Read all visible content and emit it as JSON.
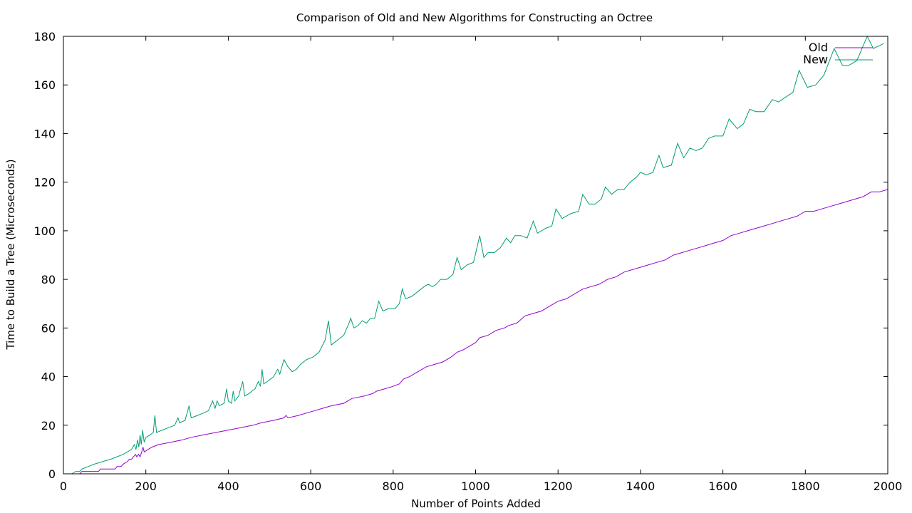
{
  "chart_data": {
    "type": "line",
    "title": "Comparison of Old and New Algorithms for Constructing an Octree",
    "xlabel": "Number of Points Added",
    "ylabel": "Time to Build a Tree (Microseconds)",
    "xlim": [
      0,
      2000
    ],
    "ylim": [
      0,
      180
    ],
    "xticks": [
      0,
      200,
      400,
      600,
      800,
      1000,
      1200,
      1400,
      1600,
      1800,
      2000
    ],
    "yticks": [
      0,
      20,
      40,
      60,
      80,
      100,
      120,
      140,
      160,
      180
    ],
    "grid": false,
    "legend_position": "top-right",
    "series": [
      {
        "name": "Old",
        "color": "#9400d3",
        "points": [
          [
            40,
            0
          ],
          [
            45,
            1
          ],
          [
            85,
            1
          ],
          [
            90,
            2
          ],
          [
            125,
            2
          ],
          [
            130,
            3
          ],
          [
            140,
            3
          ],
          [
            145,
            4
          ],
          [
            155,
            5
          ],
          [
            160,
            6
          ],
          [
            165,
            6
          ],
          [
            170,
            7
          ],
          [
            175,
            8
          ],
          [
            178,
            7
          ],
          [
            182,
            8
          ],
          [
            186,
            7
          ],
          [
            190,
            9
          ],
          [
            193,
            11
          ],
          [
            196,
            9
          ],
          [
            205,
            10
          ],
          [
            215,
            11
          ],
          [
            230,
            12
          ],
          [
            260,
            13
          ],
          [
            290,
            14
          ],
          [
            310,
            15
          ],
          [
            340,
            16
          ],
          [
            370,
            17
          ],
          [
            400,
            18
          ],
          [
            430,
            19
          ],
          [
            460,
            20
          ],
          [
            480,
            21
          ],
          [
            510,
            22
          ],
          [
            535,
            23
          ],
          [
            540,
            24
          ],
          [
            545,
            23
          ],
          [
            570,
            24
          ],
          [
            590,
            25
          ],
          [
            610,
            26
          ],
          [
            630,
            27
          ],
          [
            650,
            28
          ],
          [
            680,
            29
          ],
          [
            700,
            31
          ],
          [
            730,
            32
          ],
          [
            750,
            33
          ],
          [
            760,
            34
          ],
          [
            780,
            35
          ],
          [
            800,
            36
          ],
          [
            815,
            37
          ],
          [
            825,
            39
          ],
          [
            840,
            40
          ],
          [
            860,
            42
          ],
          [
            880,
            44
          ],
          [
            900,
            45
          ],
          [
            920,
            46
          ],
          [
            940,
            48
          ],
          [
            955,
            50
          ],
          [
            970,
            51
          ],
          [
            990,
            53
          ],
          [
            1000,
            54
          ],
          [
            1010,
            56
          ],
          [
            1030,
            57
          ],
          [
            1050,
            59
          ],
          [
            1070,
            60
          ],
          [
            1080,
            61
          ],
          [
            1100,
            62
          ],
          [
            1120,
            65
          ],
          [
            1140,
            66
          ],
          [
            1160,
            67
          ],
          [
            1180,
            69
          ],
          [
            1200,
            71
          ],
          [
            1220,
            72
          ],
          [
            1240,
            74
          ],
          [
            1260,
            76
          ],
          [
            1280,
            77
          ],
          [
            1300,
            78
          ],
          [
            1320,
            80
          ],
          [
            1340,
            81
          ],
          [
            1360,
            83
          ],
          [
            1380,
            84
          ],
          [
            1400,
            85
          ],
          [
            1420,
            86
          ],
          [
            1440,
            87
          ],
          [
            1460,
            88
          ],
          [
            1480,
            90
          ],
          [
            1500,
            91
          ],
          [
            1520,
            92
          ],
          [
            1540,
            93
          ],
          [
            1560,
            94
          ],
          [
            1580,
            95
          ],
          [
            1600,
            96
          ],
          [
            1620,
            98
          ],
          [
            1640,
            99
          ],
          [
            1660,
            100
          ],
          [
            1680,
            101
          ],
          [
            1700,
            102
          ],
          [
            1720,
            103
          ],
          [
            1740,
            104
          ],
          [
            1760,
            105
          ],
          [
            1780,
            106
          ],
          [
            1800,
            108
          ],
          [
            1820,
            108
          ],
          [
            1840,
            109
          ],
          [
            1860,
            110
          ],
          [
            1880,
            111
          ],
          [
            1900,
            112
          ],
          [
            1920,
            113
          ],
          [
            1940,
            114
          ],
          [
            1960,
            116
          ],
          [
            1980,
            116
          ],
          [
            2000,
            117
          ]
        ]
      },
      {
        "name": "New",
        "color": "#009e73",
        "points": [
          [
            20,
            0
          ],
          [
            30,
            1
          ],
          [
            40,
            1
          ],
          [
            45,
            2
          ],
          [
            60,
            3
          ],
          [
            75,
            4
          ],
          [
            95,
            5
          ],
          [
            115,
            6
          ],
          [
            130,
            7
          ],
          [
            145,
            8
          ],
          [
            155,
            9
          ],
          [
            165,
            10
          ],
          [
            172,
            12
          ],
          [
            176,
            10
          ],
          [
            180,
            14
          ],
          [
            183,
            11
          ],
          [
            186,
            16
          ],
          [
            189,
            12
          ],
          [
            192,
            18
          ],
          [
            196,
            13
          ],
          [
            200,
            15
          ],
          [
            210,
            16
          ],
          [
            218,
            17
          ],
          [
            222,
            24
          ],
          [
            226,
            17
          ],
          [
            240,
            18
          ],
          [
            255,
            19
          ],
          [
            270,
            20
          ],
          [
            278,
            23
          ],
          [
            282,
            21
          ],
          [
            295,
            22
          ],
          [
            305,
            28
          ],
          [
            310,
            23
          ],
          [
            325,
            24
          ],
          [
            340,
            25
          ],
          [
            352,
            26
          ],
          [
            362,
            30
          ],
          [
            368,
            27
          ],
          [
            373,
            30
          ],
          [
            378,
            28
          ],
          [
            390,
            29
          ],
          [
            396,
            35
          ],
          [
            400,
            30
          ],
          [
            408,
            29
          ],
          [
            412,
            34
          ],
          [
            416,
            30
          ],
          [
            425,
            32
          ],
          [
            435,
            38
          ],
          [
            440,
            32
          ],
          [
            450,
            33
          ],
          [
            465,
            35
          ],
          [
            473,
            38
          ],
          [
            478,
            36
          ],
          [
            482,
            43
          ],
          [
            486,
            37
          ],
          [
            495,
            38
          ],
          [
            510,
            40
          ],
          [
            520,
            43
          ],
          [
            525,
            41
          ],
          [
            535,
            47
          ],
          [
            545,
            44
          ],
          [
            555,
            42
          ],
          [
            565,
            43
          ],
          [
            575,
            45
          ],
          [
            590,
            47
          ],
          [
            605,
            48
          ],
          [
            620,
            50
          ],
          [
            635,
            55
          ],
          [
            643,
            63
          ],
          [
            650,
            53
          ],
          [
            665,
            55
          ],
          [
            680,
            57
          ],
          [
            693,
            62
          ],
          [
            697,
            64
          ],
          [
            705,
            60
          ],
          [
            715,
            61
          ],
          [
            725,
            63
          ],
          [
            735,
            62
          ],
          [
            745,
            64
          ],
          [
            755,
            64
          ],
          [
            765,
            71
          ],
          [
            775,
            67
          ],
          [
            790,
            68
          ],
          [
            805,
            68
          ],
          [
            815,
            70
          ],
          [
            822,
            76
          ],
          [
            830,
            72
          ],
          [
            845,
            73
          ],
          [
            860,
            75
          ],
          [
            875,
            77
          ],
          [
            885,
            78
          ],
          [
            895,
            77
          ],
          [
            905,
            78
          ],
          [
            915,
            80
          ],
          [
            930,
            80
          ],
          [
            945,
            82
          ],
          [
            955,
            89
          ],
          [
            965,
            84
          ],
          [
            980,
            86
          ],
          [
            995,
            87
          ],
          [
            1010,
            98
          ],
          [
            1020,
            89
          ],
          [
            1030,
            91
          ],
          [
            1045,
            91
          ],
          [
            1060,
            93
          ],
          [
            1075,
            97
          ],
          [
            1085,
            95
          ],
          [
            1095,
            98
          ],
          [
            1110,
            98
          ],
          [
            1125,
            97
          ],
          [
            1140,
            104
          ],
          [
            1150,
            99
          ],
          [
            1170,
            101
          ],
          [
            1185,
            102
          ],
          [
            1195,
            109
          ],
          [
            1210,
            105
          ],
          [
            1230,
            107
          ],
          [
            1250,
            108
          ],
          [
            1260,
            115
          ],
          [
            1275,
            111
          ],
          [
            1290,
            111
          ],
          [
            1305,
            113
          ],
          [
            1315,
            118
          ],
          [
            1330,
            115
          ],
          [
            1345,
            117
          ],
          [
            1360,
            117
          ],
          [
            1375,
            120
          ],
          [
            1390,
            122
          ],
          [
            1400,
            124
          ],
          [
            1415,
            123
          ],
          [
            1430,
            124
          ],
          [
            1445,
            131
          ],
          [
            1455,
            126
          ],
          [
            1475,
            127
          ],
          [
            1490,
            136
          ],
          [
            1505,
            130
          ],
          [
            1520,
            134
          ],
          [
            1535,
            133
          ],
          [
            1550,
            134
          ],
          [
            1565,
            138
          ],
          [
            1580,
            139
          ],
          [
            1600,
            139
          ],
          [
            1615,
            146
          ],
          [
            1635,
            142
          ],
          [
            1650,
            144
          ],
          [
            1665,
            150
          ],
          [
            1680,
            149
          ],
          [
            1700,
            149
          ],
          [
            1720,
            154
          ],
          [
            1735,
            153
          ],
          [
            1770,
            157
          ],
          [
            1785,
            166
          ],
          [
            1805,
            159
          ],
          [
            1825,
            160
          ],
          [
            1845,
            164
          ],
          [
            1870,
            175
          ],
          [
            1890,
            168
          ],
          [
            1905,
            168
          ],
          [
            1925,
            170
          ],
          [
            1940,
            176
          ],
          [
            1950,
            180
          ],
          [
            1965,
            175
          ],
          [
            1990,
            177
          ]
        ]
      }
    ]
  }
}
